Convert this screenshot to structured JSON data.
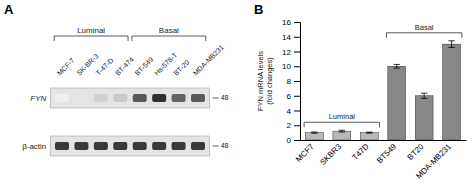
{
  "chart_data": [
    {
      "type": "blot",
      "title": "A",
      "categories": [
        "MCF-7",
        "SK-BR-3",
        "T-47-D",
        "BT-474",
        "BT-549",
        "Hs-578-T",
        "BT-20",
        "MDA-MB231"
      ],
      "series": [
        {
          "name": "FYN",
          "values": [
            0.12,
            0.18,
            0.28,
            0.32,
            0.72,
            0.85,
            0.68,
            0.72
          ],
          "size_label": "48"
        },
        {
          "name": "β-actin",
          "values": [
            0.82,
            0.82,
            0.82,
            0.82,
            0.82,
            0.82,
            0.82,
            0.82
          ],
          "size_label": "48"
        }
      ],
      "groups": [
        {
          "label": "Luminal",
          "members": [
            "MCF-7",
            "SK-BR-3",
            "T-47-D",
            "BT-474"
          ]
        },
        {
          "label": "Basal",
          "members": [
            "BT-549",
            "Hs-578-T",
            "BT-20",
            "MDA-MB231"
          ]
        }
      ]
    },
    {
      "type": "bar",
      "title": "B",
      "categories": [
        "MCF7",
        "SKBR3",
        "T47D",
        "BT549",
        "BT20",
        "MDA-MB231"
      ],
      "values": [
        1.0,
        1.2,
        1.0,
        10.0,
        6.0,
        13.0
      ],
      "errors": [
        0.08,
        0.12,
        0.07,
        0.25,
        0.35,
        0.45
      ],
      "colors": [
        "#b8b8b8",
        "#b8b8b8",
        "#b8b8b8",
        "#888888",
        "#888888",
        "#888888"
      ],
      "ylabel": "FYN mRNA levels\n(fold changes)",
      "ylim": [
        0,
        16
      ],
      "yticks": [
        0,
        2,
        4,
        6,
        8,
        10,
        12,
        14,
        16
      ],
      "groups": [
        {
          "label": "Luminal",
          "members": [
            "MCF7",
            "SKBR3",
            "T47D"
          ]
        },
        {
          "label": "Basal",
          "members": [
            "BT549",
            "BT20",
            "MDA-MB231"
          ]
        }
      ]
    }
  ]
}
